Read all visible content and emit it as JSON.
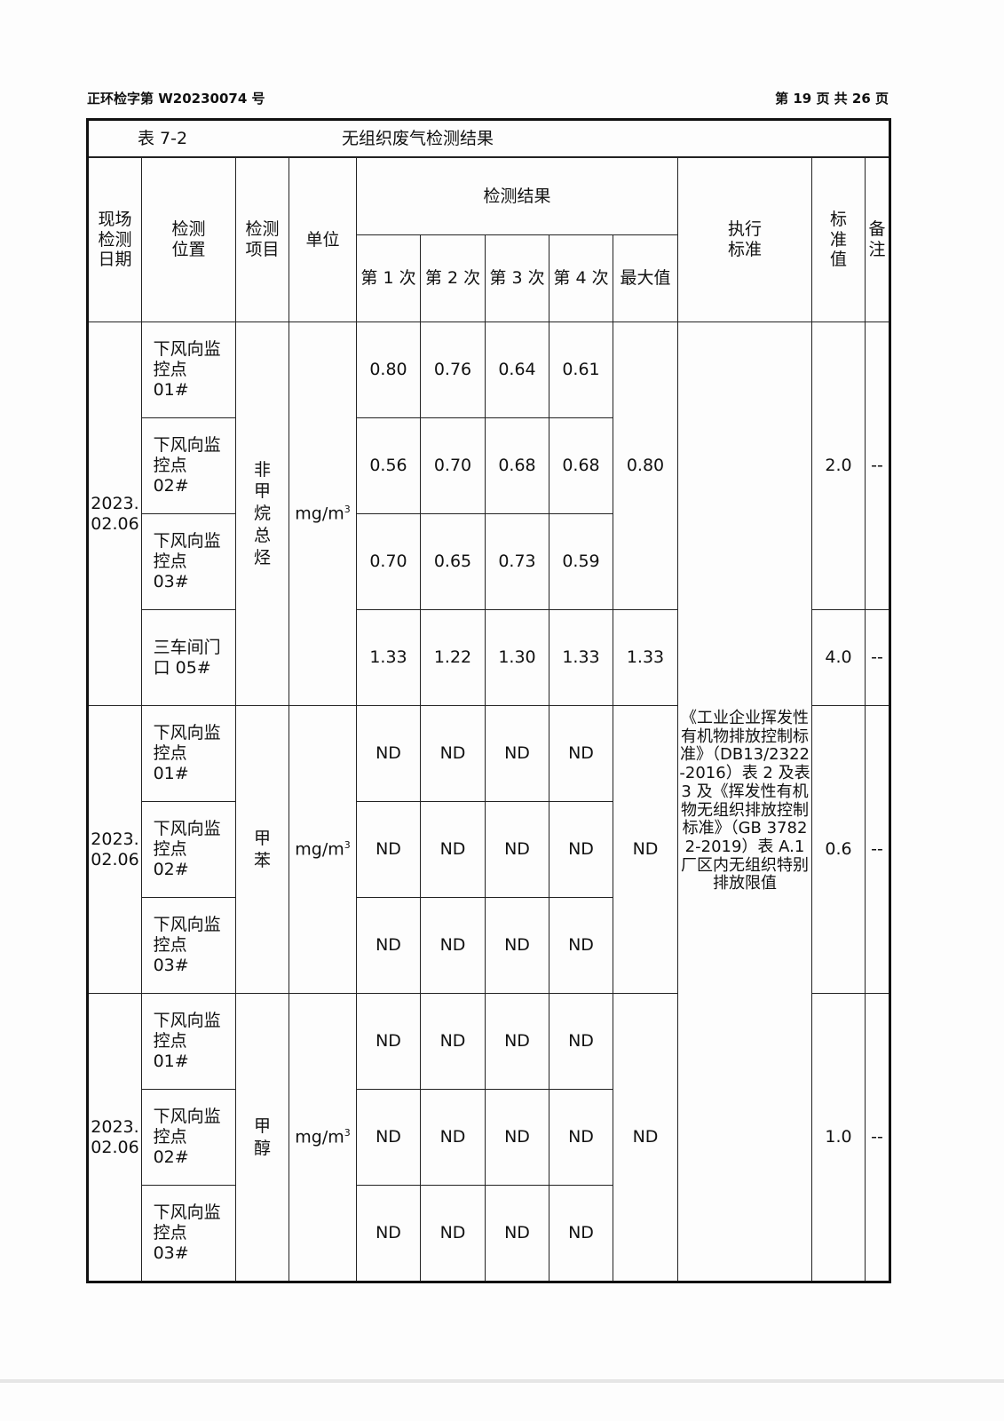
{
  "header": {
    "report_no": "正环检字第 W20230074 号",
    "page_no": "第 19 页 共 26 页"
  },
  "table": {
    "number": "表 7-2",
    "title": "无组织废气检测结果",
    "columns": {
      "date": "现场\n检测\n日期",
      "location": "检测\n位置",
      "item": "检测\n项目",
      "unit": "单位",
      "results": "检测结果",
      "r1": "第 1 次",
      "r2": "第 2 次",
      "r3": "第 3 次",
      "r4": "第 4 次",
      "max": "最大值",
      "standard": "执行\n标准",
      "limit": "标\n准\n值",
      "note": "备\n注"
    },
    "standard_text": "《工业企业挥发性有机物排放控制标准》（DB13/2322-2016）表 2 及表 3 及《挥发性有机物无组织排放控制标准》（GB 37822-2019）表 A.1 厂区内无组织特别排放限值",
    "groups": [
      {
        "date": "2023.\n02.06",
        "item": "非甲烷总烃",
        "unit": "mg/m",
        "unit_sup": "3",
        "rows": [
          {
            "location": "下风向监控点 01#",
            "values": [
              "0.80",
              "0.76",
              "0.64",
              "0.61"
            ]
          },
          {
            "location": "下风向监控点 02#",
            "values": [
              "0.56",
              "0.70",
              "0.68",
              "0.68"
            ]
          },
          {
            "location": "下风向监控点 03#",
            "values": [
              "0.70",
              "0.65",
              "0.73",
              "0.59"
            ]
          },
          {
            "location": "三车间门口 05#",
            "values": [
              "1.33",
              "1.22",
              "1.30",
              "1.33"
            ]
          }
        ],
        "max_a": "0.80",
        "limit_a": "2.0",
        "note_a": "--",
        "max_b": "1.33",
        "limit_b": "4.0",
        "note_b": "--"
      },
      {
        "date": "2023.\n02.06",
        "item": "甲苯",
        "unit": "mg/m",
        "unit_sup": "3",
        "rows": [
          {
            "location": "下风向监控点 01#",
            "values": [
              "ND",
              "ND",
              "ND",
              "ND"
            ]
          },
          {
            "location": "下风向监控点 02#",
            "values": [
              "ND",
              "ND",
              "ND",
              "ND"
            ]
          },
          {
            "location": "下风向监控点 03#",
            "values": [
              "ND",
              "ND",
              "ND",
              "ND"
            ]
          }
        ],
        "max": "ND",
        "limit": "0.6",
        "note": "--"
      },
      {
        "date": "2023.\n02.06",
        "item": "甲醇",
        "unit": "mg/m",
        "unit_sup": "3",
        "rows": [
          {
            "location": "下风向监控点 01#",
            "values": [
              "ND",
              "ND",
              "ND",
              "ND"
            ]
          },
          {
            "location": "下风向监控点 02#",
            "values": [
              "ND",
              "ND",
              "ND",
              "ND"
            ]
          },
          {
            "location": "下风向监控点 03#",
            "values": [
              "ND",
              "ND",
              "ND",
              "ND"
            ]
          }
        ],
        "max": "ND",
        "limit": "1.0",
        "note": "--"
      }
    ]
  }
}
